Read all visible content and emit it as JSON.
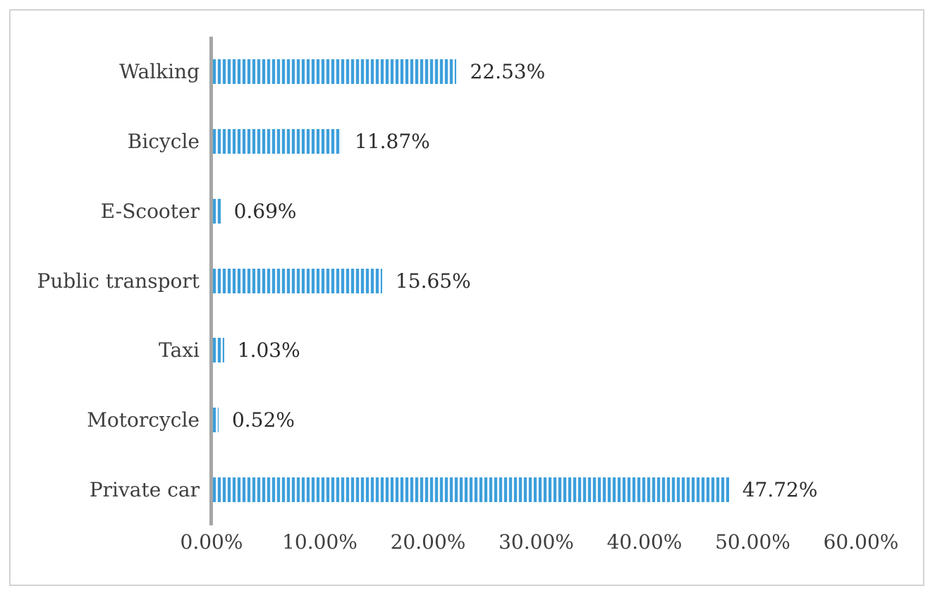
{
  "chart_data": {
    "type": "bar",
    "orientation": "horizontal",
    "title": "",
    "xlabel": "",
    "ylabel": "",
    "categories": [
      "Walking",
      "Bicycle",
      "E-Scooter",
      "Public transport",
      "Taxi",
      "Motorcycle",
      "Private car"
    ],
    "values": [
      22.53,
      11.87,
      0.69,
      15.65,
      1.03,
      0.52,
      47.72
    ],
    "data_labels": [
      "22.53%",
      "11.87%",
      "0.69%",
      "15.65%",
      "1.03%",
      "0.52%",
      "47.72%"
    ],
    "xlim": [
      0,
      60
    ],
    "x_ticks": [
      "0.00%",
      "10.00%",
      "20.00%",
      "30.00%",
      "40.00%",
      "50.00%",
      "60.00%"
    ],
    "grid": false,
    "legend": "none",
    "bar_fill_pattern": "vertical-stripes",
    "colors": {
      "bar_stripe_blue": "#3d9fdb",
      "bar_stripe_light": "#dceefa",
      "axis_line": "#a6a6a6",
      "category_label": "#3f3f3f",
      "value_label": "#2b2b2b",
      "figure_border": "#d3d3d3"
    }
  }
}
